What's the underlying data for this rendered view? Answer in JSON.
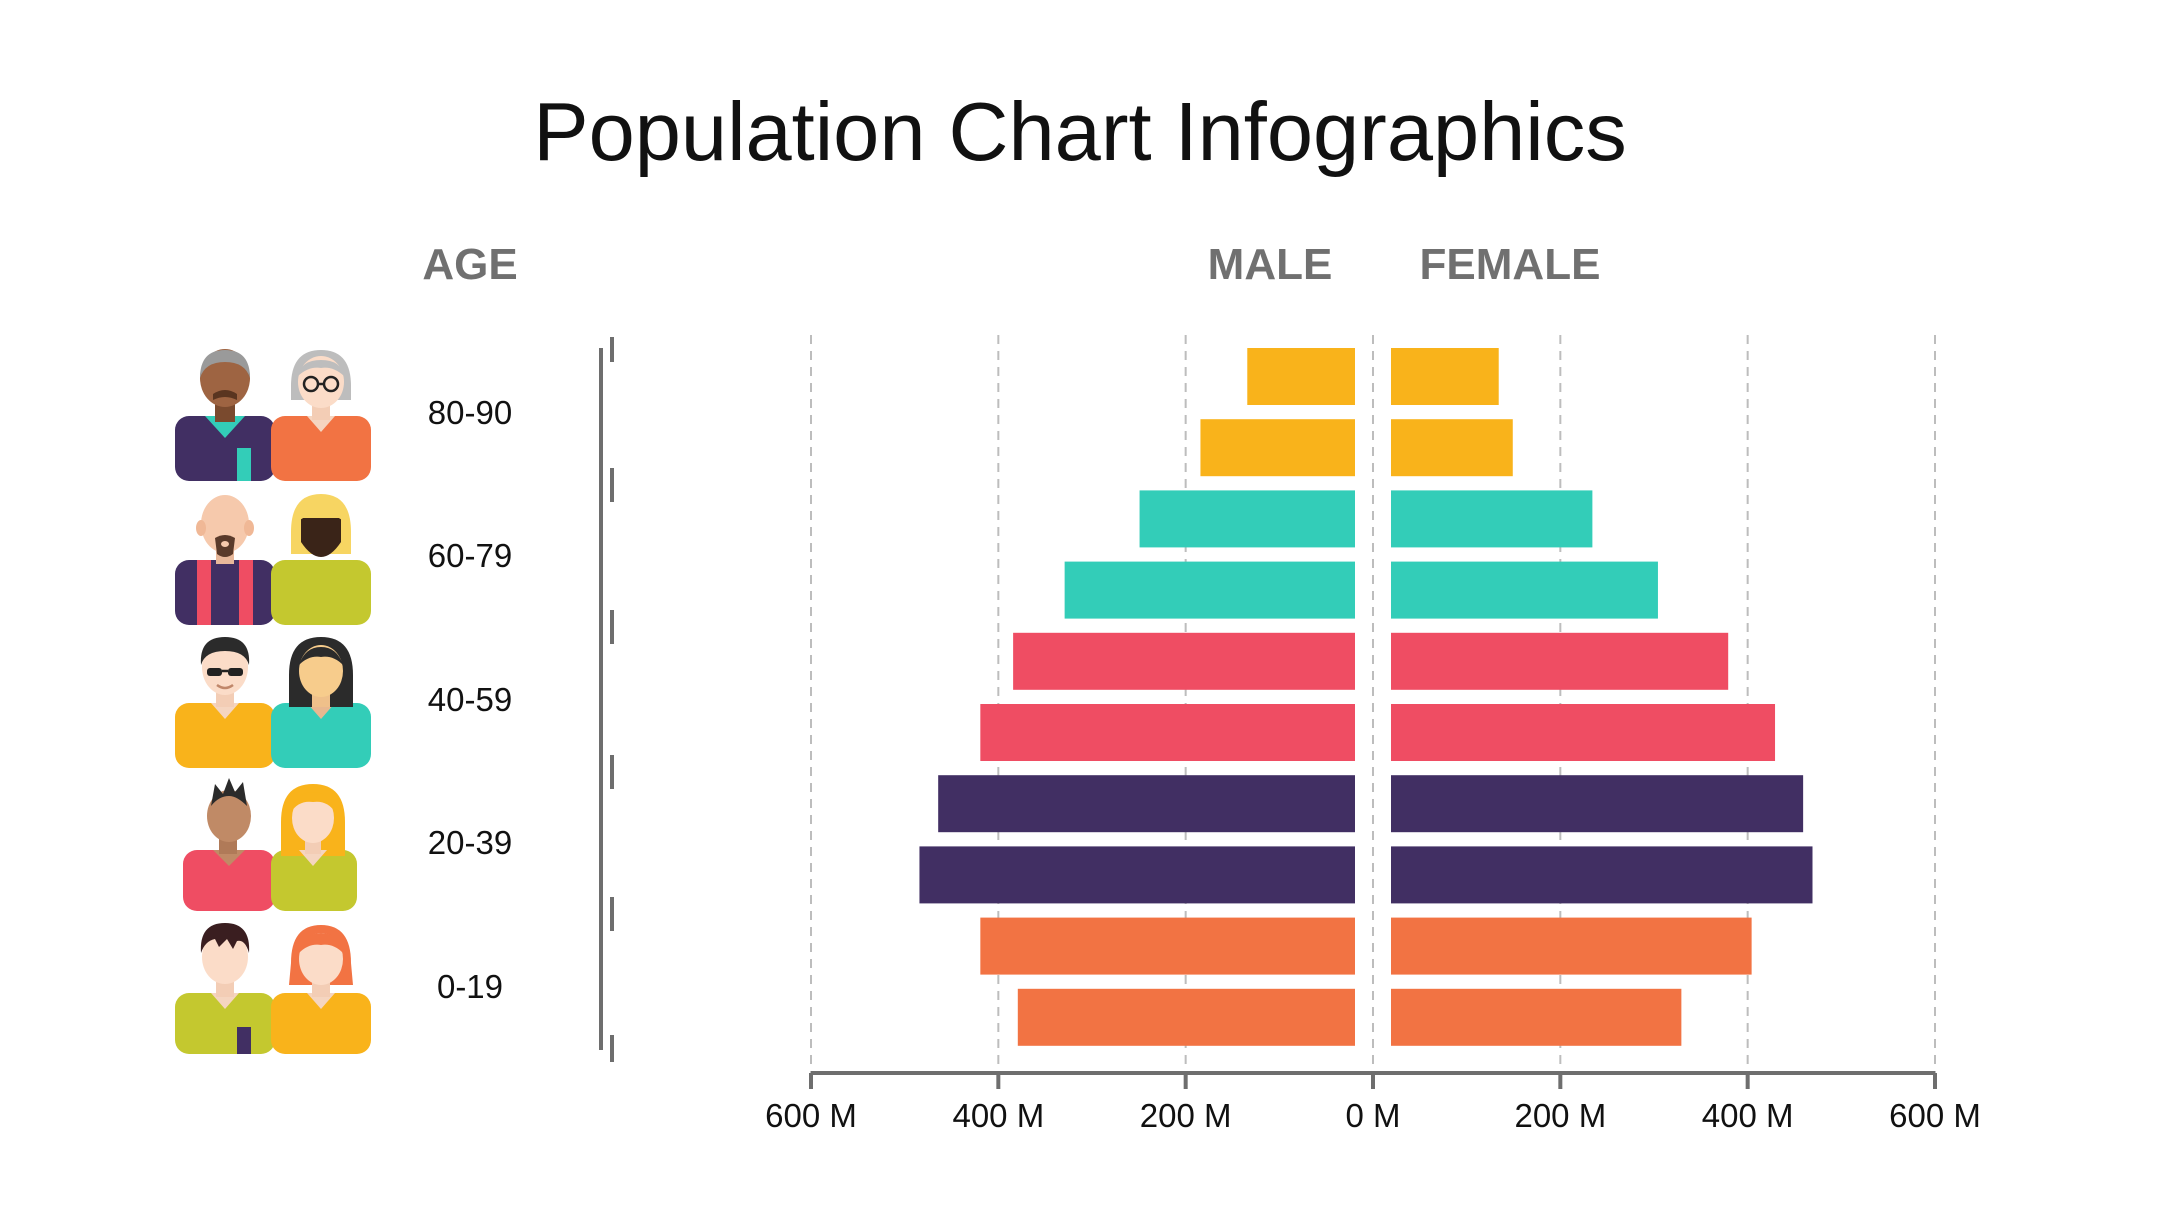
{
  "title": "Population Chart Infographics",
  "headers": {
    "age": "AGE",
    "male": "MALE",
    "female": "FEMALE"
  },
  "age_groups": [
    {
      "label": "80-90",
      "male_avatar": "elderly-man-icon",
      "female_avatar": "elderly-woman-icon"
    },
    {
      "label": "60-79",
      "male_avatar": "bald-bearded-man-icon",
      "female_avatar": "blonde-woman-icon"
    },
    {
      "label": "40-59",
      "male_avatar": "man-sunglasses-icon",
      "female_avatar": "dark-hair-woman-icon"
    },
    {
      "label": "20-39",
      "male_avatar": "mohawk-man-icon",
      "female_avatar": "young-woman-icon"
    },
    {
      "label": "0-19",
      "male_avatar": "boy-icon",
      "female_avatar": "girl-icon"
    }
  ],
  "colors": {
    "80-90": "#F9B31B",
    "60-79": "#33CDB8",
    "40-59": "#EF4D63",
    "20-39": "#412F63",
    "0-19": "#F27343",
    "axis": "#6E6E6E",
    "grid": "#BDBDBD"
  },
  "chart_data": {
    "type": "bar",
    "orientation": "horizontal",
    "title": "Population Chart Infographics",
    "unit": "M",
    "categories": [
      "80-90 a",
      "80-90 b",
      "60-79 a",
      "60-79 b",
      "40-59 a",
      "40-59 b",
      "20-39 a",
      "20-39 b",
      "0-19 a",
      "0-19 b"
    ],
    "category_groups": [
      "80-90",
      "80-90",
      "60-79",
      "60-79",
      "40-59",
      "40-59",
      "20-39",
      "20-39",
      "0-19",
      "0-19"
    ],
    "series": [
      {
        "name": "MALE",
        "values": [
          115,
          165,
          230,
          310,
          365,
          400,
          445,
          465,
          400,
          360
        ]
      },
      {
        "name": "FEMALE",
        "values": [
          115,
          130,
          215,
          285,
          360,
          410,
          440,
          450,
          385,
          310
        ]
      }
    ],
    "xlim": [
      -600,
      600
    ],
    "xticks": [
      -600,
      -400,
      -200,
      0,
      200,
      400,
      600
    ],
    "xtick_labels": [
      "600 M",
      "400 M",
      "200 M",
      "0 M",
      "200 M",
      "400 M",
      "600 M"
    ],
    "grid": true
  }
}
